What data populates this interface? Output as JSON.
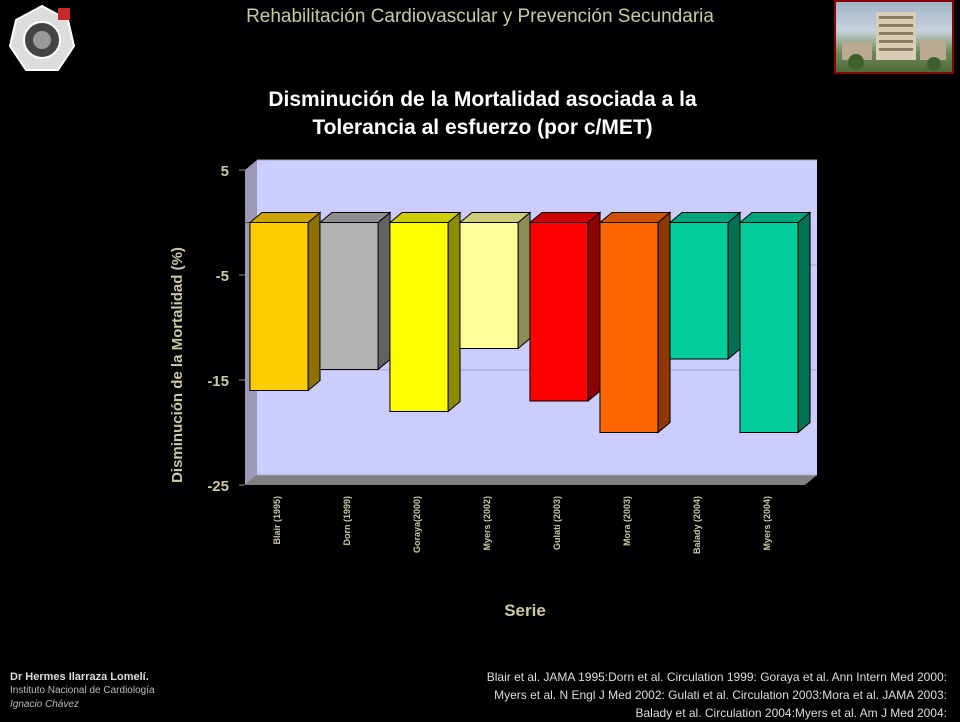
{
  "header": {
    "title": "Rehabilitación Cardiovascular y  Prevención Secundaria"
  },
  "chart_data": {
    "type": "bar",
    "title": "Disminución de la Mortalidad asociada  a la",
    "subtitle": "Tolerancia al esfuerzo (por c/MET)",
    "xlabel": "Serie",
    "ylabel": "Disminución de la Mortalidad (%)",
    "ylim": [
      -25,
      5
    ],
    "yticks": [
      "5",
      "-5",
      "-15",
      "-25"
    ],
    "grid": true,
    "categories": [
      "Blair (1995)",
      "Dorn (1999)",
      "Goraya(2000)",
      "Myers (2002)",
      "Gulati (2003)",
      "Mora (2003)",
      "Balady (2004)",
      "Myers (2004)"
    ],
    "values": [
      -16,
      -14,
      -18,
      -12,
      -17,
      -20,
      -13,
      -20
    ],
    "colors": [
      "#ffcc00",
      "#b2b2b2",
      "#ffff00",
      "#ffff99",
      "#ff0000",
      "#ff6600",
      "#00cc99",
      "#00cc99"
    ],
    "plot_background": "#ccccff"
  },
  "footer": {
    "author": "Dr Hermes  Ilarraza Lomelí.",
    "institution_line1": "Instituto Nacional de Cardiología",
    "institution_line2": "Ignacio Chávez",
    "references": [
      "Blair et al. JAMA 1995:Dorn et al. Circulation 1999: Goraya et al. Ann Intern Med 2000:",
      "Myers et al. N Engl J Med 2002: Gulati et al. Circulation 2003:Mora et al. JAMA 2003:",
      "Balady et al. Circulation 2004:Myers et al. Am J Med 2004:"
    ]
  }
}
